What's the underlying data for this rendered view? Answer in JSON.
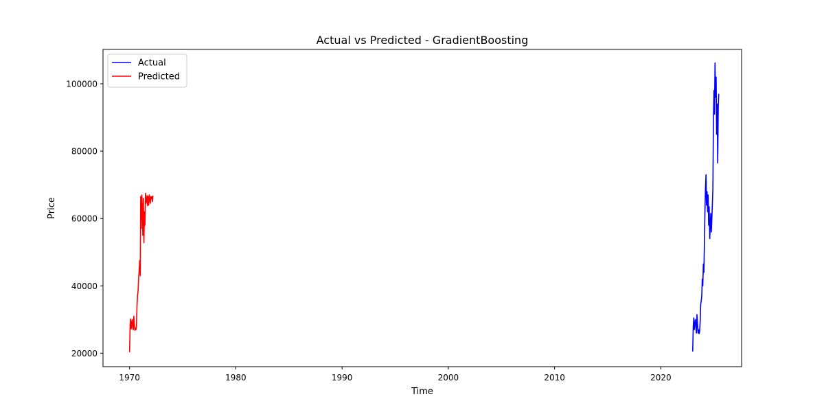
{
  "chart_data": {
    "type": "line",
    "title": "Actual vs Predicted - GradientBoosting",
    "xlabel": "Time",
    "ylabel": "Price",
    "xlim": [
      1967.5,
      2027.6
    ],
    "ylim": [
      16000,
      110200
    ],
    "x_ticks": [
      1970,
      1980,
      1990,
      2000,
      2010,
      2020
    ],
    "x_tick_labels": [
      "1970",
      "1980",
      "1990",
      "2000",
      "2010",
      "2020"
    ],
    "y_ticks": [
      20000,
      40000,
      60000,
      80000,
      100000
    ],
    "y_tick_labels": [
      "20000",
      "40000",
      "60000",
      "80000",
      "100000"
    ],
    "grid": false,
    "legend_position": "top-left",
    "series": [
      {
        "name": "Actual",
        "color": "#0000ff",
        "x": [
          2023.0,
          2023.05,
          2023.1,
          2023.15,
          2023.2,
          2023.25,
          2023.3,
          2023.35,
          2023.4,
          2023.45,
          2023.5,
          2023.55,
          2023.6,
          2023.65,
          2023.7,
          2023.75,
          2023.8,
          2023.85,
          2023.9,
          2023.95,
          2024.0,
          2024.05,
          2024.1,
          2024.15,
          2024.2,
          2024.25,
          2024.3,
          2024.35,
          2024.4,
          2024.45,
          2024.5,
          2024.55,
          2024.6,
          2024.65,
          2024.7,
          2024.75,
          2024.8,
          2024.85,
          2024.9,
          2024.95,
          2025.0,
          2025.05,
          2025.1,
          2025.15,
          2025.2,
          2025.25,
          2025.3,
          2025.35,
          2025.4,
          2025.45
        ],
        "y": [
          20500,
          28000,
          30500,
          27000,
          29000,
          30000,
          27500,
          26000,
          31500,
          28500,
          26000,
          27000,
          25800,
          26500,
          29500,
          34500,
          35500,
          37000,
          42000,
          40000,
          46500,
          44000,
          52000,
          62000,
          69000,
          73000,
          64000,
          68000,
          62000,
          67000,
          58000,
          63500,
          54000,
          58000,
          61500,
          56000,
          60000,
          64000,
          69000,
          90000,
          98000,
          91000,
          106200,
          96000,
          102000,
          85000,
          94000,
          76500,
          93000,
          97000
        ]
      },
      {
        "name": "Predicted",
        "color": "#ff0000",
        "x": [
          1970.0,
          1970.05,
          1970.1,
          1970.15,
          1970.2,
          1970.25,
          1970.3,
          1970.35,
          1970.4,
          1970.45,
          1970.5,
          1970.55,
          1970.6,
          1970.65,
          1970.7,
          1970.75,
          1970.8,
          1970.85,
          1970.9,
          1970.95,
          1971.0,
          1971.05,
          1971.1,
          1971.15,
          1971.2,
          1971.25,
          1971.3,
          1971.35,
          1971.4,
          1971.45,
          1971.5,
          1971.55,
          1971.6,
          1971.65,
          1971.7,
          1971.75,
          1971.8,
          1971.85,
          1971.9,
          1971.95,
          1972.0,
          1972.05,
          1972.1,
          1972.15,
          1972.2
        ],
        "y": [
          20300,
          28500,
          30200,
          27200,
          29000,
          30000,
          27500,
          27000,
          31000,
          28800,
          26800,
          27500,
          27000,
          28000,
          34000,
          37000,
          38500,
          42000,
          44500,
          47500,
          43000,
          66500,
          57000,
          67000,
          63000,
          55000,
          66000,
          52800,
          62000,
          58000,
          67500,
          64500,
          65500,
          66800,
          63800,
          66500,
          64000,
          67000,
          66000,
          64500,
          66500,
          65800,
          66500,
          65000,
          66800
        ]
      }
    ]
  }
}
